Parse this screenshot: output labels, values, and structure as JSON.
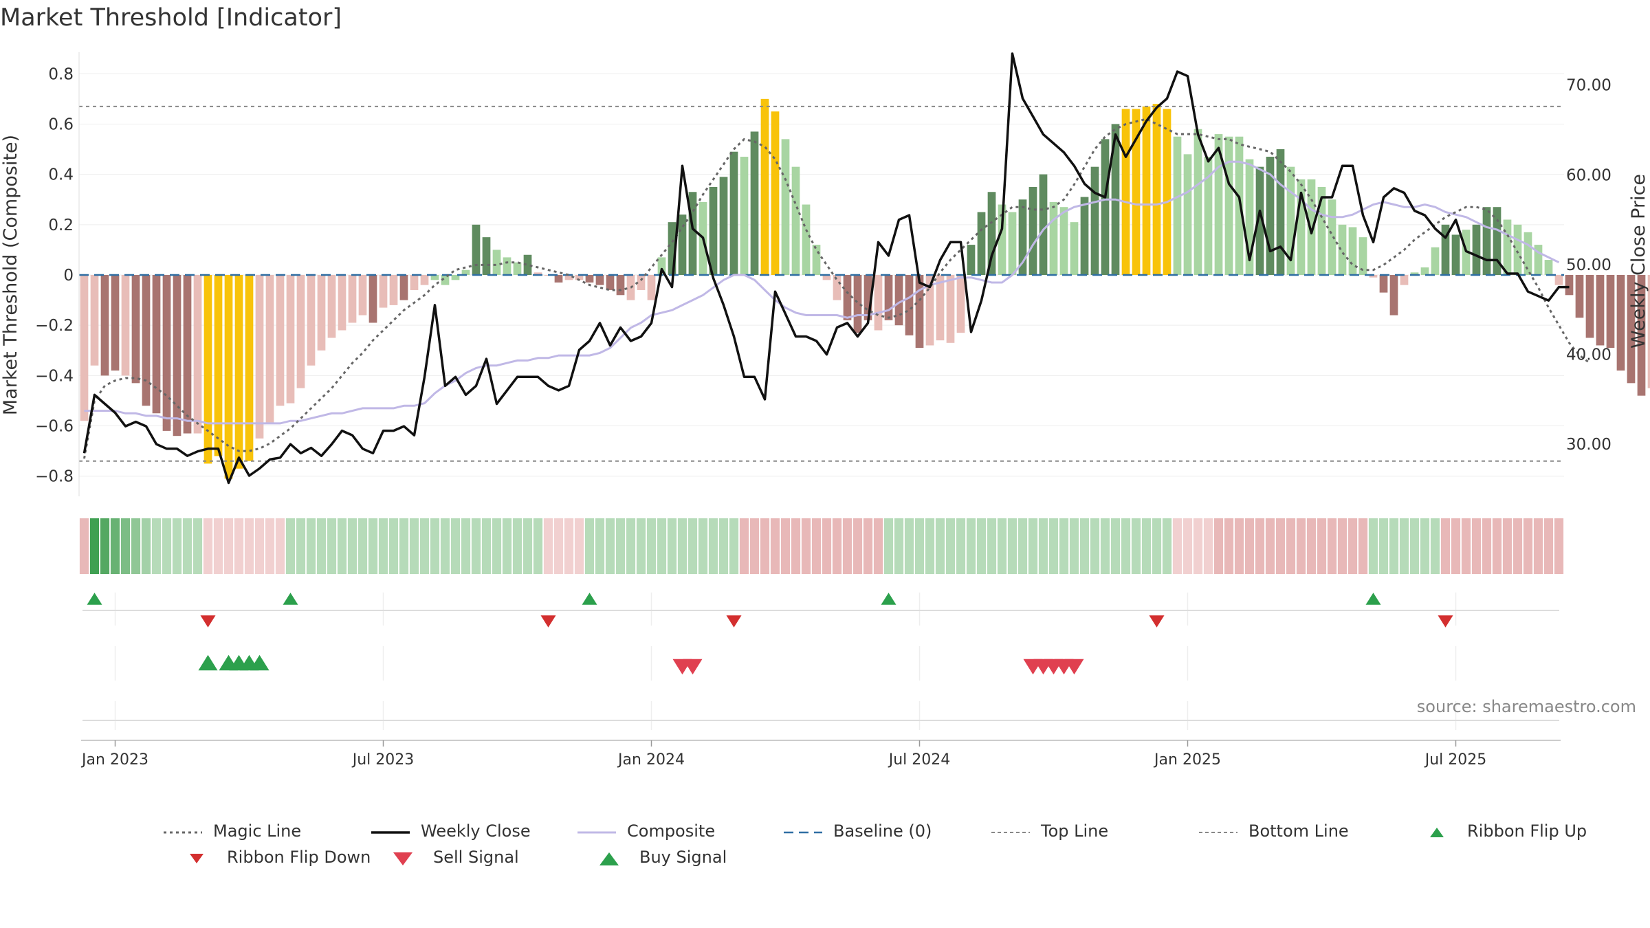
{
  "title": "Market Threshold [Indicator]",
  "source": "source: sharemaestro.com",
  "colors": {
    "strong_pos": "#5f8b5f",
    "weak_pos": "#a8d5a2",
    "strong_neg": "#a87470",
    "weak_neg": "#e8bdb8",
    "extreme": "#f8c30a",
    "composite_line": "#c0b8e6",
    "close_line": "#111111",
    "magic_line": "#666666",
    "baseline": "#2f6ea3",
    "ribbon_up": "#2ca04c",
    "ribbon_down": "#d32f2f"
  },
  "chart_data": {
    "type": "bar",
    "y_left_label": "Market Threshold (Composite)",
    "y_right_label": "Weekly Close Price",
    "y_left_ticks": [
      "0.8",
      "0.6",
      "0.4",
      "0.2",
      "0",
      "−0.2",
      "−0.4",
      "−0.6",
      "−0.8"
    ],
    "y_left_tick_values": [
      0.8,
      0.6,
      0.4,
      0.2,
      0,
      -0.2,
      -0.4,
      -0.6,
      -0.8
    ],
    "y_right_ticks": [
      "70.00",
      "60.00",
      "50.00",
      "40.00",
      "30.00"
    ],
    "y_right_tick_values": [
      70,
      60,
      50,
      40,
      30
    ],
    "ylim_left": [
      -0.88,
      0.88
    ],
    "ylim_right": [
      24.2,
      73.5
    ],
    "top_line": 0.67,
    "bottom_line": -0.74,
    "x_ticks": [
      "Jan 2023",
      "Jul 2023",
      "Jan 2024",
      "Jul 2024",
      "Jan 2025",
      "Jul 2025"
    ],
    "x_tick_week_index": [
      3,
      29,
      55,
      81,
      107,
      133
    ],
    "week_count": 144,
    "composite": [
      -0.58,
      -0.36,
      -0.4,
      -0.38,
      -0.4,
      -0.43,
      -0.52,
      -0.55,
      -0.62,
      -0.64,
      -0.63,
      -0.63,
      -0.75,
      -0.72,
      -0.81,
      -0.77,
      -0.74,
      -0.65,
      -0.59,
      -0.52,
      -0.51,
      -0.45,
      -0.36,
      -0.3,
      -0.25,
      -0.22,
      -0.19,
      -0.16,
      -0.19,
      -0.13,
      -0.12,
      -0.1,
      -0.06,
      -0.04,
      -0.02,
      -0.04,
      -0.02,
      0.02,
      0.2,
      0.15,
      0.1,
      0.07,
      0.05,
      0.08,
      0.01,
      0.0,
      -0.03,
      -0.02,
      -0.02,
      -0.03,
      -0.04,
      -0.06,
      -0.08,
      -0.1,
      -0.06,
      -0.1,
      0.07,
      0.21,
      0.24,
      0.33,
      0.29,
      0.35,
      0.39,
      0.49,
      0.47,
      0.57,
      0.7,
      0.65,
      0.54,
      0.43,
      0.28,
      0.12,
      -0.02,
      -0.1,
      -0.18,
      -0.23,
      -0.18,
      -0.22,
      -0.18,
      -0.2,
      -0.24,
      -0.29,
      -0.28,
      -0.26,
      -0.27,
      -0.23,
      0.12,
      0.25,
      0.33,
      0.28,
      0.25,
      0.3,
      0.35,
      0.4,
      0.29,
      0.27,
      0.21,
      0.31,
      0.43,
      0.54,
      0.6,
      0.66,
      0.66,
      0.67,
      0.68,
      0.66,
      0.55,
      0.48,
      0.58,
      0.47,
      0.56,
      0.55,
      0.55,
      0.46,
      0.43,
      0.47,
      0.5,
      0.43,
      0.38,
      0.38,
      0.35,
      0.3,
      0.2,
      0.19,
      0.15,
      -0.01,
      -0.07,
      -0.16,
      -0.04,
      0.01,
      0.03,
      0.11,
      0.2,
      0.16,
      0.18,
      0.2,
      0.27,
      0.27,
      0.22,
      0.2,
      0.17,
      0.12,
      0.06,
      -0.04,
      -0.08,
      -0.17,
      -0.25,
      -0.28,
      -0.29,
      -0.38,
      -0.43,
      -0.48,
      -0.45,
      -0.37
    ],
    "bar_class": [
      "wn",
      "wn",
      "sn",
      "sn",
      "wn",
      "sn",
      "sn",
      "sn",
      "sn",
      "sn",
      "sn",
      "wn",
      "ex",
      "ex",
      "ex",
      "ex",
      "ex",
      "wn",
      "wn",
      "wn",
      "wn",
      "wn",
      "wn",
      "wn",
      "wn",
      "wn",
      "wn",
      "wn",
      "sn",
      "wn",
      "wn",
      "sn",
      "wn",
      "wn",
      "wp",
      "wp",
      "wp",
      "wp",
      "sp",
      "sp",
      "wp",
      "wp",
      "wp",
      "sp",
      "wn",
      "wn",
      "sn",
      "wn",
      "wn",
      "sn",
      "sn",
      "sn",
      "sn",
      "wn",
      "wn",
      "wn",
      "wp",
      "sp",
      "sp",
      "sp",
      "wp",
      "sp",
      "sp",
      "sp",
      "wp",
      "sp",
      "ex",
      "ex",
      "wp",
      "wp",
      "wp",
      "wp",
      "wn",
      "wn",
      "sn",
      "sn",
      "sn",
      "wn",
      "sn",
      "sn",
      "sn",
      "sn",
      "wn",
      "wn",
      "wn",
      "wn",
      "sp",
      "sp",
      "sp",
      "wp",
      "wp",
      "sp",
      "sp",
      "sp",
      "wp",
      "wp",
      "wp",
      "sp",
      "sp",
      "sp",
      "sp",
      "ex",
      "ex",
      "ex",
      "ex",
      "ex",
      "wp",
      "wp",
      "wp",
      "wp",
      "wp",
      "wp",
      "wp",
      "wp",
      "sp",
      "sp",
      "sp",
      "wp",
      "wp",
      "wp",
      "wp",
      "wp",
      "wp",
      "wp",
      "wp",
      "wn",
      "sn",
      "sn",
      "wn",
      "wp",
      "wp",
      "wp",
      "sp",
      "sp",
      "wp",
      "sp",
      "sp",
      "sp",
      "wp",
      "wp",
      "wp",
      "wp",
      "wp",
      "wn",
      "sn",
      "sn",
      "sn",
      "sn",
      "sn",
      "sn",
      "sn",
      "sn",
      "wn",
      "wn"
    ],
    "weekly_close": [
      29,
      35.5,
      34.5,
      33.5,
      32,
      32.5,
      32,
      30,
      29.5,
      29.5,
      28.7,
      29.2,
      29.5,
      29.5,
      25.7,
      28.5,
      26.5,
      27.3,
      28.3,
      28.5,
      30,
      29,
      29.6,
      28.7,
      30,
      31.5,
      31,
      29.5,
      29,
      31.5,
      31.5,
      32,
      31,
      37.5,
      45.5,
      36.5,
      37.5,
      35.5,
      36.5,
      39.5,
      34.5,
      36,
      37.5,
      37.5,
      37.5,
      36.5,
      36,
      36.5,
      40.5,
      41.5,
      43.5,
      41,
      43,
      41.5,
      42,
      43.5,
      49.5,
      47.5,
      61,
      54,
      53,
      48.5,
      45.5,
      42,
      37.5,
      37.5,
      35,
      47,
      44.5,
      42,
      42,
      41.5,
      40,
      43,
      43.5,
      42,
      43.5,
      52.5,
      51,
      55,
      55.5,
      48,
      47.5,
      50.5,
      52.5,
      52.5,
      42.5,
      46,
      51,
      54,
      73.5,
      68.5,
      66.5,
      64.5,
      63.5,
      62.5,
      61,
      59,
      58,
      57.5,
      64.5,
      62,
      64,
      66,
      67.5,
      68.5,
      71.5,
      71,
      64.5,
      61.5,
      63,
      59,
      57.5,
      50.5,
      56,
      51.5,
      52,
      50.5,
      58,
      53.5,
      57.5,
      57.5,
      61,
      61,
      55.5,
      52.5,
      57.5,
      58.5,
      58,
      56,
      55.5,
      54,
      53,
      55,
      51.5,
      51,
      50.5,
      50.5,
      49,
      49,
      47,
      46.5,
      46,
      47.5,
      47.5
    ],
    "magic_line": [
      -0.73,
      -0.5,
      -0.44,
      -0.42,
      -0.41,
      -0.41,
      -0.42,
      -0.45,
      -0.48,
      -0.52,
      -0.56,
      -0.59,
      -0.62,
      -0.65,
      -0.68,
      -0.7,
      -0.7,
      -0.69,
      -0.67,
      -0.64,
      -0.61,
      -0.57,
      -0.53,
      -0.49,
      -0.45,
      -0.4,
      -0.35,
      -0.31,
      -0.26,
      -0.22,
      -0.18,
      -0.14,
      -0.11,
      -0.08,
      -0.04,
      -0.01,
      0.02,
      0.03,
      0.04,
      0.04,
      0.04,
      0.05,
      0.05,
      0.04,
      0.03,
      0.02,
      0.01,
      0.0,
      -0.02,
      -0.04,
      -0.05,
      -0.06,
      -0.06,
      -0.05,
      -0.02,
      0.03,
      0.08,
      0.13,
      0.19,
      0.25,
      0.32,
      0.38,
      0.44,
      0.5,
      0.54,
      0.53,
      0.51,
      0.46,
      0.38,
      0.28,
      0.18,
      0.1,
      0.04,
      -0.02,
      -0.07,
      -0.11,
      -0.14,
      -0.16,
      -0.17,
      -0.16,
      -0.14,
      -0.1,
      -0.05,
      0.01,
      0.06,
      0.1,
      0.14,
      0.18,
      0.21,
      0.24,
      0.27,
      0.27,
      0.26,
      0.26,
      0.27,
      0.3,
      0.36,
      0.43,
      0.5,
      0.55,
      0.58,
      0.6,
      0.61,
      0.62,
      0.6,
      0.58,
      0.56,
      0.56,
      0.56,
      0.55,
      0.54,
      0.54,
      0.52,
      0.51,
      0.5,
      0.49,
      0.45,
      0.41,
      0.36,
      0.3,
      0.23,
      0.16,
      0.09,
      0.04,
      0.02,
      0.02,
      0.04,
      0.07,
      0.1,
      0.14,
      0.17,
      0.2,
      0.23,
      0.25,
      0.27,
      0.27,
      0.26,
      0.22,
      0.16,
      0.09,
      0.02,
      -0.05,
      -0.13,
      -0.2,
      -0.27,
      -0.32,
      -0.35
    ],
    "composite_ma": [
      -0.54,
      -0.54,
      -0.54,
      -0.54,
      -0.55,
      -0.55,
      -0.56,
      -0.56,
      -0.57,
      -0.57,
      -0.58,
      -0.58,
      -0.59,
      -0.59,
      -0.59,
      -0.59,
      -0.59,
      -0.59,
      -0.59,
      -0.59,
      -0.58,
      -0.58,
      -0.57,
      -0.56,
      -0.55,
      -0.55,
      -0.54,
      -0.53,
      -0.53,
      -0.53,
      -0.53,
      -0.52,
      -0.52,
      -0.51,
      -0.47,
      -0.44,
      -0.42,
      -0.39,
      -0.37,
      -0.36,
      -0.36,
      -0.35,
      -0.34,
      -0.34,
      -0.33,
      -0.33,
      -0.32,
      -0.32,
      -0.32,
      -0.32,
      -0.31,
      -0.29,
      -0.25,
      -0.21,
      -0.19,
      -0.16,
      -0.15,
      -0.14,
      -0.12,
      -0.1,
      -0.08,
      -0.05,
      -0.02,
      0.0,
      0.0,
      -0.02,
      -0.06,
      -0.1,
      -0.13,
      -0.15,
      -0.16,
      -0.16,
      -0.16,
      -0.16,
      -0.17,
      -0.16,
      -0.16,
      -0.15,
      -0.14,
      -0.11,
      -0.09,
      -0.06,
      -0.04,
      -0.03,
      -0.02,
      -0.01,
      -0.01,
      -0.02,
      -0.03,
      -0.03,
      0.0,
      0.05,
      0.12,
      0.18,
      0.22,
      0.25,
      0.27,
      0.28,
      0.29,
      0.3,
      0.3,
      0.29,
      0.28,
      0.28,
      0.28,
      0.29,
      0.31,
      0.33,
      0.36,
      0.39,
      0.43,
      0.45,
      0.45,
      0.44,
      0.42,
      0.4,
      0.36,
      0.33,
      0.3,
      0.26,
      0.24,
      0.23,
      0.23,
      0.24,
      0.26,
      0.28,
      0.29,
      0.28,
      0.27,
      0.27,
      0.28,
      0.27,
      0.25,
      0.24,
      0.23,
      0.21,
      0.19,
      0.18,
      0.16,
      0.14,
      0.12,
      0.09,
      0.07,
      0.05
    ],
    "ribbon_colors": [
      "#e8b8b8",
      "#3fa052",
      "#54a862",
      "#68b273",
      "#7cbd85",
      "#90c796",
      "#a3d1a8",
      "#b6dbb9",
      "#b6dbb9",
      "#b6dbb9",
      "#b6dbb9",
      "#b6dbb9",
      "#f1d0d0",
      "#f1d0d0",
      "#f1d0d0",
      "#f1d0d0",
      "#f1d0d0",
      "#f1d0d0",
      "#f1d0d0",
      "#f1d0d0",
      "#b6dbb9",
      "#b6dbb9",
      "#b6dbb9",
      "#b6dbb9",
      "#b6dbb9",
      "#b6dbb9",
      "#b6dbb9",
      "#b6dbb9",
      "#b6dbb9",
      "#b6dbb9",
      "#b6dbb9",
      "#b6dbb9",
      "#b6dbb9",
      "#b6dbb9",
      "#b6dbb9",
      "#b6dbb9",
      "#b6dbb9",
      "#b6dbb9",
      "#b6dbb9",
      "#b6dbb9",
      "#b6dbb9",
      "#b6dbb9",
      "#b6dbb9",
      "#b6dbb9",
      "#b6dbb9",
      "#f1d0d0",
      "#f1d0d0",
      "#f1d0d0",
      "#f1d0d0",
      "#b6dbb9",
      "#b6dbb9",
      "#b6dbb9",
      "#b6dbb9",
      "#b6dbb9",
      "#b6dbb9",
      "#b6dbb9",
      "#b6dbb9",
      "#b6dbb9",
      "#b6dbb9",
      "#b6dbb9",
      "#b6dbb9",
      "#b6dbb9",
      "#b6dbb9",
      "#b6dbb9",
      "#e8b8b8",
      "#e8b8b8",
      "#e8b8b8",
      "#e8b8b8",
      "#e8b8b8",
      "#e8b8b8",
      "#e8b8b8",
      "#e8b8b8",
      "#e8b8b8",
      "#e8b8b8",
      "#e8b8b8",
      "#e8b8b8",
      "#e8b8b8",
      "#e8b8b8",
      "#b6dbb9",
      "#b6dbb9",
      "#b6dbb9",
      "#b6dbb9",
      "#b6dbb9",
      "#b6dbb9",
      "#b6dbb9",
      "#b6dbb9",
      "#b6dbb9",
      "#b6dbb9",
      "#b6dbb9",
      "#b6dbb9",
      "#b6dbb9",
      "#b6dbb9",
      "#b6dbb9",
      "#b6dbb9",
      "#b6dbb9",
      "#b6dbb9",
      "#b6dbb9",
      "#b6dbb9",
      "#b6dbb9",
      "#b6dbb9",
      "#b6dbb9",
      "#b6dbb9",
      "#b6dbb9",
      "#b6dbb9",
      "#b6dbb9",
      "#b6dbb9",
      "#f1d0d0",
      "#f1d0d0",
      "#f1d0d0",
      "#f1d0d0",
      "#e8b8b8",
      "#e8b8b8",
      "#e8b8b8",
      "#e8b8b8",
      "#e8b8b8",
      "#e8b8b8",
      "#e8b8b8",
      "#e8b8b8",
      "#e8b8b8",
      "#e8b8b8",
      "#e8b8b8",
      "#e8b8b8",
      "#e8b8b8",
      "#e8b8b8",
      "#e8b8b8",
      "#b6dbb9",
      "#b6dbb9",
      "#b6dbb9",
      "#b6dbb9",
      "#b6dbb9",
      "#b6dbb9",
      "#b6dbb9",
      "#e8b8b8",
      "#e8b8b8",
      "#e8b8b8",
      "#e8b8b8",
      "#e8b8b8",
      "#e8b8b8",
      "#e8b8b8",
      "#e8b8b8",
      "#e8b8b8",
      "#e8b8b8",
      "#e8b8b8",
      "#e8b8b8"
    ],
    "ribbon_flip_up_weeks": [
      1,
      20,
      49,
      78,
      125
    ],
    "ribbon_flip_down_weeks": [
      12,
      45,
      63,
      104,
      132
    ],
    "buy_signal_weeks": [
      12,
      14,
      15,
      16,
      17
    ],
    "sell_signal_weeks": [
      58,
      59,
      92,
      93,
      94,
      95,
      96
    ]
  },
  "legend": [
    {
      "key": "magic",
      "label": "Magic Line"
    },
    {
      "key": "close",
      "label": "Weekly Close"
    },
    {
      "key": "composite",
      "label": "Composite"
    },
    {
      "key": "baseline",
      "label": "Baseline (0)"
    },
    {
      "key": "top",
      "label": "Top Line"
    },
    {
      "key": "bottom",
      "label": "Bottom Line"
    },
    {
      "key": "flipup",
      "label": "Ribbon Flip Up"
    },
    {
      "key": "flipdown",
      "label": "Ribbon Flip Down"
    },
    {
      "key": "sell",
      "label": "Sell Signal"
    },
    {
      "key": "buy",
      "label": "Buy Signal"
    }
  ]
}
